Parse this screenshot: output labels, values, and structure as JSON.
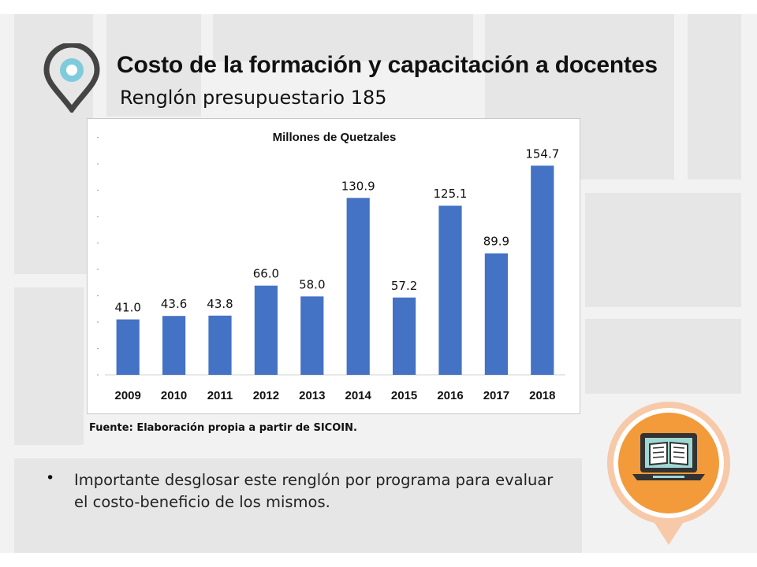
{
  "header": {
    "title": "Costo de la formación y capacitación a docentes",
    "subtitle": "Renglón presupuestario 185"
  },
  "chart_data": {
    "type": "bar",
    "title": "Millones de Quetzales",
    "categories": [
      "2009",
      "2010",
      "2011",
      "2012",
      "2013",
      "2014",
      "2015",
      "2016",
      "2017",
      "2018"
    ],
    "values": [
      41.0,
      43.6,
      43.8,
      66.0,
      58.0,
      130.9,
      57.2,
      125.1,
      89.9,
      154.7
    ],
    "labels": [
      "41.0",
      "43.6",
      "43.8",
      "66.0",
      "58.0",
      "130.9",
      "57.2",
      "125.1",
      "89.9",
      "154.7"
    ],
    "xlabel": "",
    "ylabel": "",
    "ylim": [
      0,
      180
    ],
    "bar_color": "#4472c4",
    "grid": false,
    "legend": "none"
  },
  "source_note": "Fuente: Elaboración propia a partir de SICOIN.",
  "bullets": [
    "Importante desglosar este renglón por programa para evaluar el costo-beneficio de los mismos."
  ],
  "colors": {
    "pin_outer": "#444444",
    "pin_inner": "#7fcbdc",
    "badge_orange": "#f39a3a",
    "badge_ring": "#f7c9a8"
  },
  "icons": {
    "pin": "location-pin-icon",
    "laptop": "laptop-book-icon"
  }
}
